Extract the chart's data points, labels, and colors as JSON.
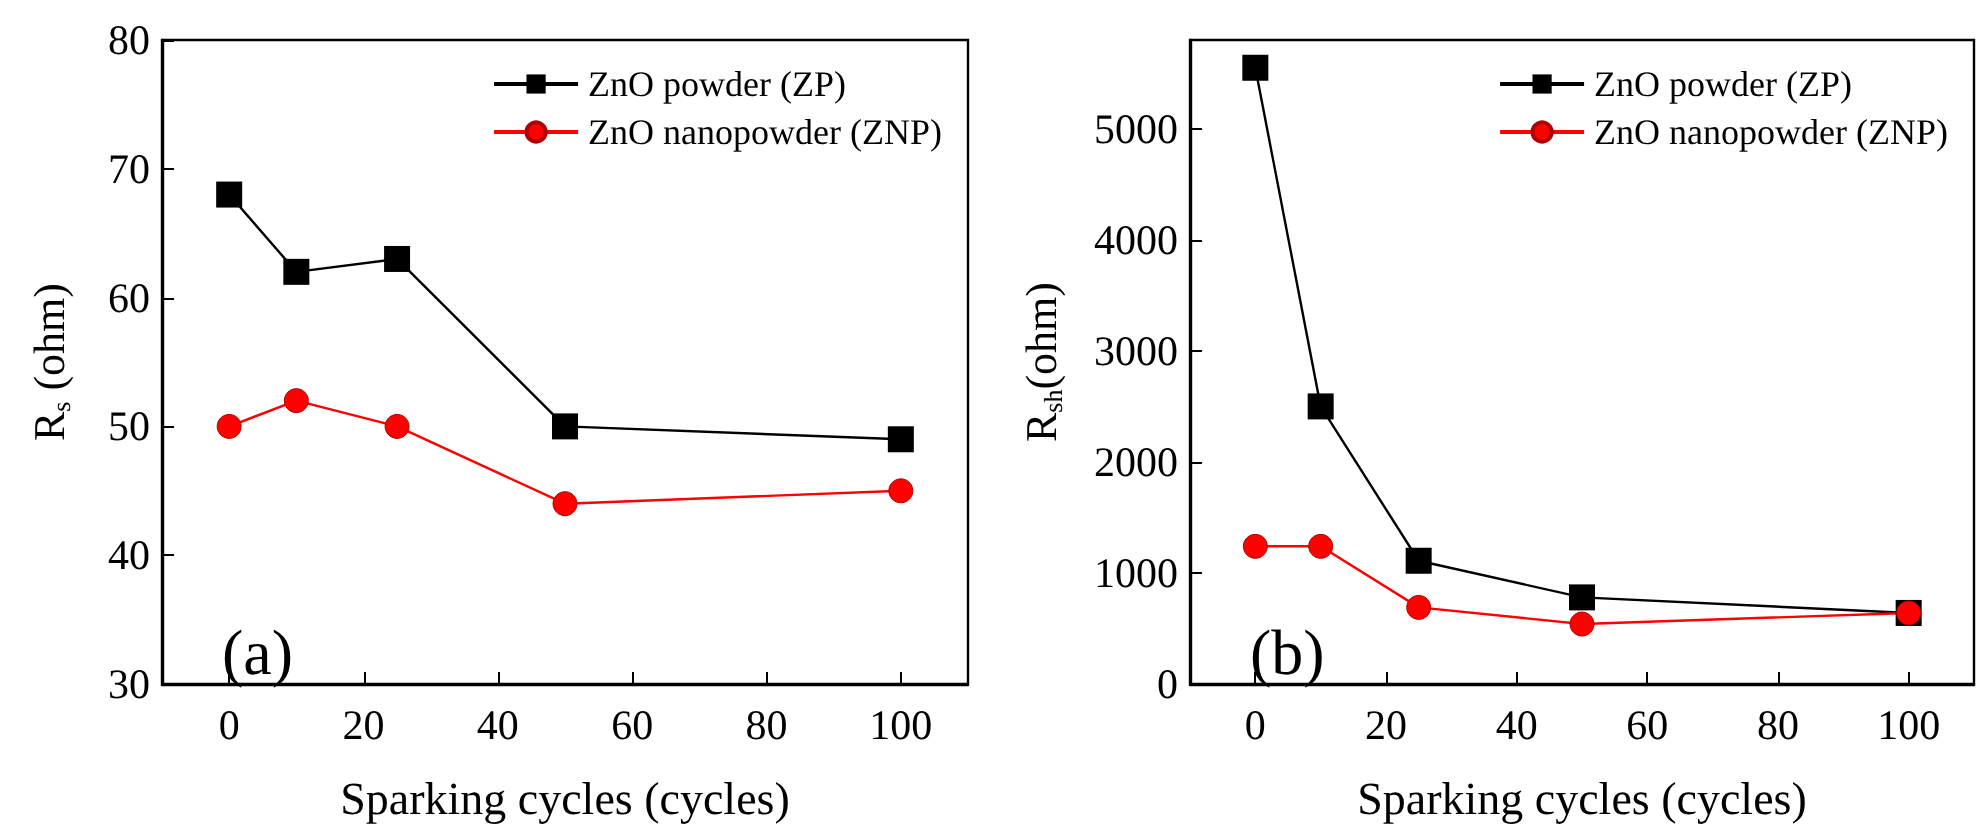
{
  "chart_data": [
    {
      "type": "line",
      "xlabel": "Sparking cycles (cycles)",
      "ylabel": "R$_{s}$ (ohm)",
      "x": [
        0,
        10,
        25,
        50,
        100
      ],
      "xlim": [
        -10,
        110
      ],
      "xticks": [
        0,
        20,
        40,
        60,
        80,
        100
      ],
      "ylim": [
        30,
        80
      ],
      "yticks": [
        30,
        40,
        50,
        60,
        70,
        80
      ],
      "series": [
        {
          "name": "ZnO powder (ZP)",
          "color": "#000000",
          "marker": "square",
          "values": [
            68,
            62,
            63,
            50,
            49
          ]
        },
        {
          "name": "ZnO nanopowder (ZNP)",
          "color": "#ff0000",
          "marker": "circle",
          "values": [
            50,
            52,
            50,
            44,
            45
          ]
        }
      ],
      "legend": "top right",
      "grid": false,
      "annotations": [
        "(a)"
      ]
    },
    {
      "type": "line",
      "xlabel": "Sparking cycles (cycles)",
      "ylabel": "R$_{sh}$(ohm)",
      "x": [
        0,
        10,
        25,
        50,
        100
      ],
      "xlim": [
        -10,
        110
      ],
      "xticks": [
        0,
        20,
        40,
        60,
        80,
        100
      ],
      "ylim": [
        0,
        5800
      ],
      "yticks": [
        0,
        1000,
        2000,
        3000,
        4000,
        5000
      ],
      "series": [
        {
          "name": "ZnO powder (ZP)",
          "color": "#000000",
          "marker": "square",
          "values": [
            5550,
            2500,
            1110,
            780,
            640
          ]
        },
        {
          "name": "ZnO nanopowder (ZNP)",
          "color": "#ff0000",
          "marker": "circle",
          "values": [
            1240,
            1240,
            690,
            540,
            640
          ]
        }
      ],
      "legend": "top right",
      "grid": false,
      "annotations": [
        "(b)"
      ]
    }
  ]
}
